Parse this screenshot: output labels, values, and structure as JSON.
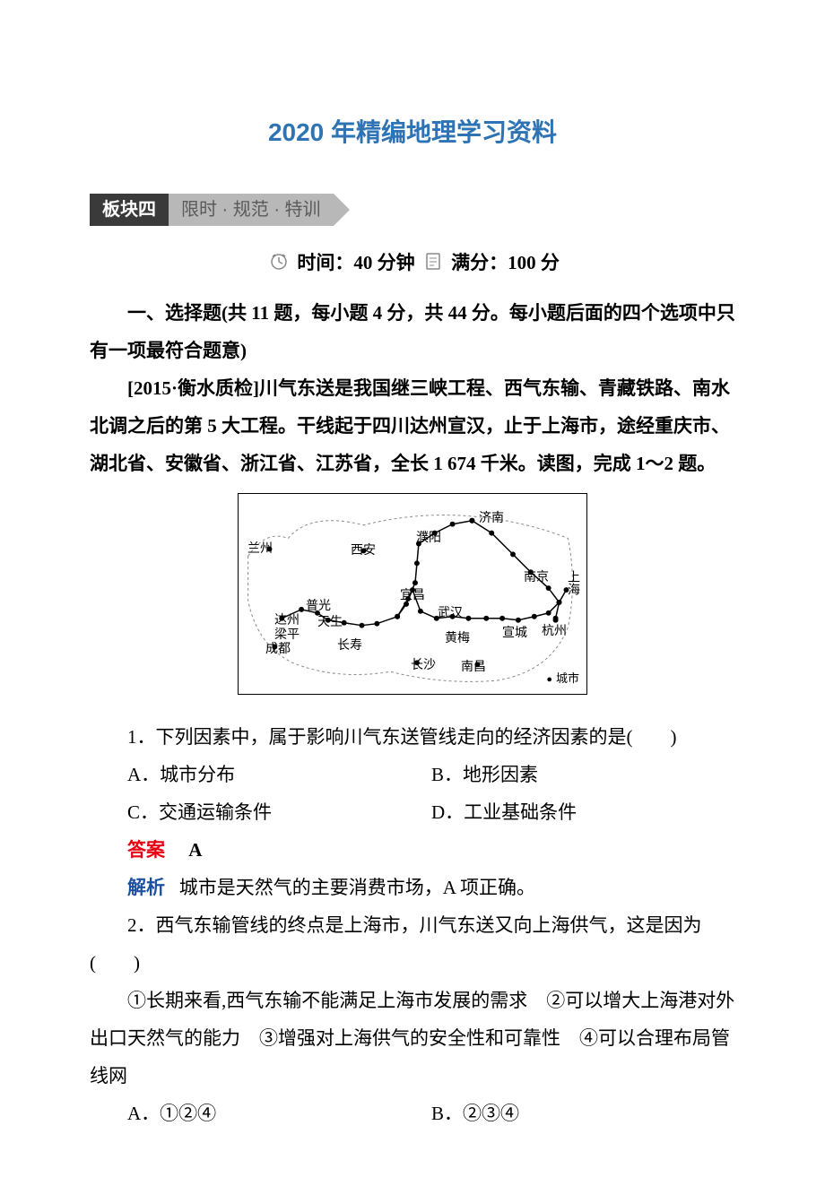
{
  "title": "2020 年精编地理学习资料",
  "section_header": {
    "dark": "板块四",
    "gray": "限时 · 规范 · 特训"
  },
  "time_score": {
    "time_label": "时间：",
    "time_value": "40 分钟",
    "score_label": "满分：",
    "score_value": "100 分"
  },
  "instruction": "一、选择题(共 11 题，每小题 4 分，共 44 分。每小题后面的四个选项中只有一项最符合题意)",
  "passage": "[2015·衡水质检]川气东送是我国继三峡工程、西气东输、青藏铁路、南水北调之后的第 5 大工程。干线起于四川达州宣汉，止于上海市，途经重庆市、湖北省、安徽省、浙江省、江苏省，全长 1 674 千米。读图，完成 1～2 题。",
  "map": {
    "cities": {
      "lanzhou": "兰州",
      "xian": "西安",
      "puyang": "濮阳",
      "jinan": "济南",
      "nanjing": "南京",
      "shanghai": "上海",
      "hangzhou": "杭州",
      "xuancheng": "宣城",
      "nanchang": "南昌",
      "changsha": "长沙",
      "wuhan": "武汉",
      "huangmei": "黄梅",
      "yichang": "宜昌",
      "puguang": "普光",
      "dazhou": "达州",
      "tiansheng": "天生",
      "liangping": "梁平",
      "changshou": "长寿",
      "chengdu": "成都"
    },
    "legend": "城市",
    "styling": {
      "border_color": "#000000",
      "line_color": "#000000",
      "dash_line_color": "#888888",
      "dot_radius": 3,
      "line_width": 1.5,
      "font_size": 14
    },
    "main_line": [
      [
        48,
        140
      ],
      [
        70,
        130
      ],
      [
        88,
        134
      ],
      [
        100,
        142
      ],
      [
        118,
        145
      ],
      [
        138,
        148
      ],
      [
        155,
        146
      ],
      [
        178,
        138
      ],
      [
        188,
        124
      ],
      [
        195,
        108
      ],
      [
        204,
        132
      ],
      [
        222,
        140
      ],
      [
        240,
        138
      ],
      [
        258,
        140
      ],
      [
        278,
        140
      ],
      [
        296,
        140
      ],
      [
        314,
        142
      ],
      [
        332,
        138
      ],
      [
        348,
        134
      ],
      [
        360,
        122
      ],
      [
        368,
        108
      ]
    ],
    "branch_line": [
      [
        178,
        138
      ],
      [
        190,
        118
      ],
      [
        198,
        100
      ],
      [
        200,
        78
      ],
      [
        202,
        56
      ],
      [
        220,
        44
      ],
      [
        240,
        34
      ],
      [
        262,
        30
      ]
    ],
    "branch_line2": [
      [
        262,
        30
      ],
      [
        284,
        44
      ],
      [
        308,
        68
      ],
      [
        328,
        88
      ],
      [
        348,
        106
      ],
      [
        360,
        122
      ]
    ],
    "hangzhou_branch": [
      [
        360,
        122
      ],
      [
        356,
        140
      ]
    ],
    "border_path": "M 10 70 Q 30 40 55 50 Q 80 20 140 35 Q 200 20 260 25 Q 320 30 370 50 Q 380 100 370 150 Q 350 200 290 210 Q 230 215 170 200 Q 110 210 60 190 Q 20 170 10 120 Z"
  },
  "q1": {
    "stem": "1．下列因素中，属于影响川气东送管线走向的经济因素的是(　　)",
    "options": {
      "A": "A．城市分布",
      "B": "B．地形因素",
      "C": "C．交通运输条件",
      "D": "D．工业基础条件"
    },
    "answer_label": "答案",
    "answer": "A",
    "analysis_label": "解析",
    "analysis": "城市是天然气的主要消费市场，A 项正确。"
  },
  "q2": {
    "stem": "2．西气东输管线的终点是上海市，川气东送又向上海供气，这是因为(　　)",
    "subopts": "①长期来看,西气东输不能满足上海市发展的需求　②可以增大上海港对外出口天然气的能力　③增强对上海供气的安全性和可靠性　④可以合理布局管线网",
    "options": {
      "A": "A．①②④",
      "B": "B．②③④"
    }
  },
  "colors": {
    "title": "#2e74b5",
    "answer": "#e60012",
    "analysis": "#1e50a2",
    "header_dark_bg": "#3a3a3a",
    "header_gray_bg": "#b8b8b8"
  }
}
